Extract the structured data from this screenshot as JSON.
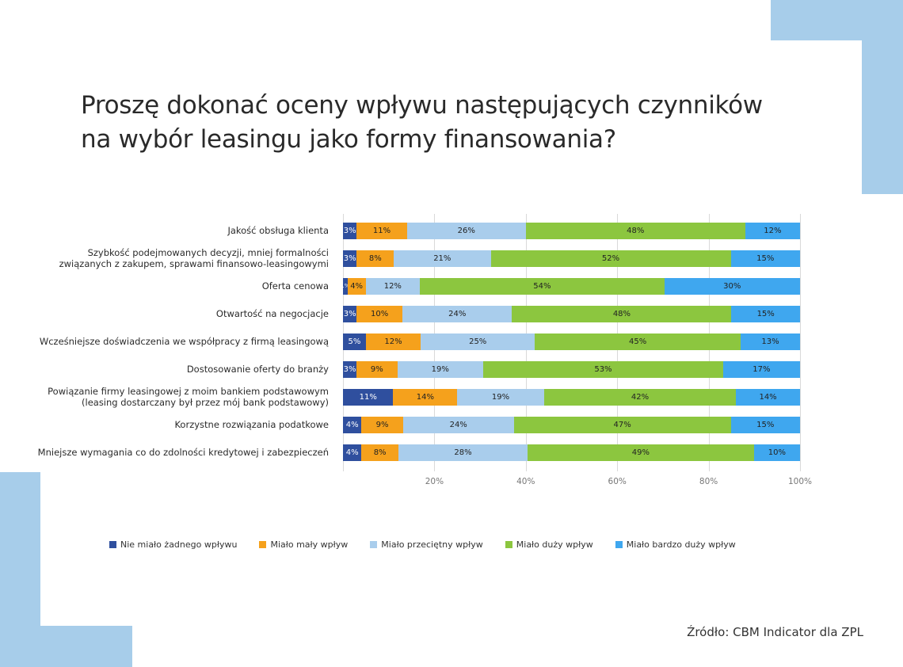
{
  "title": {
    "line1": "Proszę dokonać oceny wpływu następujących czynników",
    "line2": "na wybór leasingu jako formy finansowania?"
  },
  "source": "Źródło: CBM Indicator dla ZPL",
  "colors": {
    "none": "#2f4f9e",
    "small": "#f5a11c",
    "average": "#a9cdec",
    "large": "#8cc63f",
    "very_large": "#3fa7ef",
    "decoration": "#a7cdea"
  },
  "axis": {
    "ticks": [
      "20%",
      "40%",
      "60%",
      "80%",
      "100%"
    ]
  },
  "legend": [
    {
      "label": "Nie miało żadnego wpływu",
      "color": "#2f4f9e"
    },
    {
      "label": "Miało mały wpływ",
      "color": "#f5a11c"
    },
    {
      "label": "Miało przeciętny wpływ",
      "color": "#a9cdec"
    },
    {
      "label": "Miało duży wpływ",
      "color": "#8cc63f"
    },
    {
      "label": "Miało bardzo duży wpływ",
      "color": "#3fa7ef"
    }
  ],
  "rows": [
    {
      "label": [
        "Jakość obsługa klienta"
      ],
      "values": [
        3,
        11,
        26,
        48,
        12
      ]
    },
    {
      "label": [
        "Szybkość podejmowanych decyzji, mniej formalności",
        "związanych z zakupem, sprawami finansowo-leasingowymi"
      ],
      "values": [
        3,
        8,
        21,
        52,
        15
      ]
    },
    {
      "label": [
        "Oferta cenowa"
      ],
      "values": [
        1,
        4,
        12,
        54,
        30
      ]
    },
    {
      "label": [
        "Otwartość na negocjacje"
      ],
      "values": [
        3,
        10,
        24,
        48,
        15
      ]
    },
    {
      "label": [
        "Wcześniejsze doświadczenia we współpracy z firmą leasingową"
      ],
      "values": [
        5,
        12,
        25,
        45,
        13
      ]
    },
    {
      "label": [
        "Dostosowanie oferty do branży"
      ],
      "values": [
        3,
        9,
        19,
        53,
        17
      ]
    },
    {
      "label": [
        "Powiązanie firmy leasingowej z moim bankiem podstawowym",
        "(leasing dostarczany był przez mój bank podstawowy)"
      ],
      "values": [
        11,
        14,
        19,
        42,
        14
      ]
    },
    {
      "label": [
        "Korzystne rozwiązania podatkowe"
      ],
      "values": [
        4,
        9,
        24,
        47,
        15
      ]
    },
    {
      "label": [
        "Mniejsze wymagania co do zdolności kredytowej i zabezpieczeń"
      ],
      "values": [
        4,
        8,
        28,
        49,
        10
      ]
    }
  ],
  "chart_data": {
    "type": "bar",
    "orientation": "horizontal",
    "stacked": "percent",
    "title": "Proszę dokonać oceny wpływu następujących czynników na wybór leasingu jako formy finansowania?",
    "xlabel": "",
    "ylabel": "",
    "xlim": [
      0,
      100
    ],
    "x_ticks": [
      "0%",
      "20%",
      "40%",
      "60%",
      "80%",
      "100%"
    ],
    "grid": true,
    "legend_position": "bottom",
    "categories": [
      "Jakość obsługa klienta",
      "Szybkość podejmowanych decyzji, mniej formalności związanych z zakupem, sprawami finansowo-leasingowymi",
      "Oferta cenowa",
      "Otwartość na negocjacje",
      "Wcześniejsze doświadczenia we współpracy z firmą leasingową",
      "Dostosowanie oferty do branży",
      "Powiązanie firmy leasingowej z moim bankiem podstawowym (leasing dostarczany był przez mój bank podstawowy)",
      "Korzystne rozwiązania podatkowe",
      "Mniejsze wymagania co do zdolności kredytowej i zabezpieczeń"
    ],
    "series": [
      {
        "name": "Nie miało żadnego wpływu",
        "color": "#2f4f9e",
        "values": [
          3,
          3,
          1,
          3,
          5,
          3,
          11,
          4,
          4
        ]
      },
      {
        "name": "Miało mały wpływ",
        "color": "#f5a11c",
        "values": [
          11,
          8,
          4,
          10,
          12,
          9,
          14,
          9,
          8
        ]
      },
      {
        "name": "Miało przeciętny wpływ",
        "color": "#a9cdec",
        "values": [
          26,
          21,
          12,
          24,
          25,
          19,
          19,
          24,
          28
        ]
      },
      {
        "name": "Miało duży wpływ",
        "color": "#8cc63f",
        "values": [
          48,
          52,
          54,
          48,
          45,
          53,
          42,
          47,
          49
        ]
      },
      {
        "name": "Miało bardzo duży wpływ",
        "color": "#3fa7ef",
        "values": [
          12,
          15,
          30,
          15,
          13,
          17,
          14,
          15,
          10
        ]
      }
    ],
    "source": "Źródło: CBM Indicator dla ZPL"
  }
}
